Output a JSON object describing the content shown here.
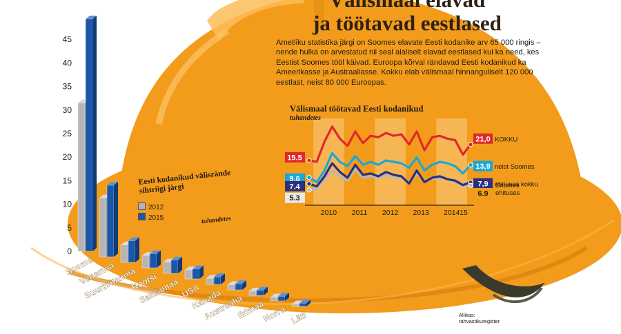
{
  "headline": {
    "line1": "Välismaal elavad",
    "line2": "ja töötavad eestlased"
  },
  "intro": "Ametliku statistika järgi on Soomes elavate Eesti kodanike arv 65 000 ringis – nende hulka on arvestatud nii seal alaliselt elavad eestlased kui ka need, kes Eestist Soomes tööl käivad. Euroopa kõrval rändavad Eesti kodanikud ka Ameerikasse ja Austraaliasse. Kokku elab välismaal hinnanguliselt 120 000 eestlast, neist 80 000 Euroopas.",
  "source": {
    "line1": "Allikas:",
    "line2": "rahvastikuregister"
  },
  "colors": {
    "helmet": "#f39c1b",
    "bar2015": "#1b57a7",
    "bar2012": "#b5b5b5",
    "red": "#e0282b",
    "cyan": "#1aa7d8",
    "navy": "#2b2f7e",
    "gray": "#b8b8b8"
  },
  "chart_data": [
    {
      "type": "bar",
      "title": "Eesti kodanikud välisrände sihtriigi järgi",
      "unit": "tuhandetes",
      "categories": [
        "Soome",
        "Venemaa",
        "Suurbritannia",
        "Rootsi",
        "Saksamaa",
        "USA",
        "Kanada",
        "Austraalia",
        "Iirimaa",
        "Norra",
        "Läti"
      ],
      "series": [
        {
          "name": "2012",
          "values": [
            31.5,
            12.5,
            3.7,
            2.6,
            2.4,
            1.9,
            1.3,
            1.1,
            0.9,
            0.8,
            0.5
          ]
        },
        {
          "name": "2015",
          "values": [
            49.3,
            15.2,
            4.6,
            3.0,
            2.8,
            2.1,
            1.6,
            1.3,
            1.1,
            1.0,
            0.7
          ]
        }
      ],
      "yticks": [
        0,
        5,
        10,
        15,
        20,
        25,
        30,
        35,
        40,
        45
      ],
      "ylim": [
        0,
        50
      ]
    },
    {
      "type": "line",
      "title": "Välismaal töötavad Eesti kodanikud",
      "unit": "tuhandetes",
      "xlabels": [
        "2010",
        "2011",
        "2012",
        "2013",
        "2014",
        "15"
      ],
      "x_quarters": [
        "2009 Q4",
        "2010 Q1",
        "2010 Q2",
        "2010 Q3",
        "2010 Q4",
        "2011 Q1",
        "2011 Q2",
        "2011 Q3",
        "2011 Q4",
        "2012 Q1",
        "2012 Q2",
        "2012 Q3",
        "2012 Q4",
        "2013 Q1",
        "2013 Q2",
        "2013 Q3",
        "2013 Q4",
        "2014 Q1",
        "2014 Q2",
        "2014 Q3",
        "2014 Q4",
        "2015 Q1"
      ],
      "ylim": [
        0,
        30
      ],
      "series": [
        {
          "name": "KOKKU",
          "first_label": "15.5",
          "last_label": "21,0",
          "color": "#e0282b",
          "values": [
            15.5,
            15.0,
            22.0,
            27.2,
            23.0,
            20.5,
            25.5,
            21.5,
            24.0,
            23.5,
            25.0,
            24.0,
            24.5,
            21.0,
            25.5,
            19.0,
            23.5,
            24.0,
            23.0,
            22.5,
            17.5,
            21.0
          ]
        },
        {
          "name": "neist Soomes",
          "first_label": "9.6",
          "last_label": "13,9",
          "color": "#1aa7d8",
          "values": [
            9.6,
            8.0,
            12.0,
            18.0,
            15.0,
            13.5,
            17.0,
            14.0,
            15.0,
            14.0,
            15.5,
            15.0,
            14.5,
            13.0,
            16.5,
            12.0,
            14.0,
            15.0,
            14.5,
            13.5,
            11.0,
            13.9
          ]
        },
        {
          "name": "ehituses kokku",
          "first_label": "7.4",
          "last_label": "7,9",
          "color": "#2b2f7e",
          "values": [
            7.4,
            6.5,
            10.0,
            14.5,
            11.5,
            9.5,
            14.0,
            10.5,
            11.0,
            10.0,
            11.5,
            10.5,
            10.0,
            7.5,
            12.0,
            8.0,
            9.5,
            10.0,
            9.0,
            8.5,
            7.0,
            7.9
          ]
        },
        {
          "name": "Soomes ehituses",
          "first_label": "5.3",
          "last_label": "6.9",
          "color": "#b8b8b8",
          "values": [
            5.3,
            5.5,
            9.0,
            12.0,
            10.0,
            8.5,
            12.5,
            9.5,
            10.0,
            9.5,
            10.5,
            9.5,
            9.5,
            8.0,
            11.0,
            8.5,
            9.0,
            9.5,
            9.0,
            8.0,
            6.5,
            6.9
          ]
        }
      ]
    }
  ]
}
